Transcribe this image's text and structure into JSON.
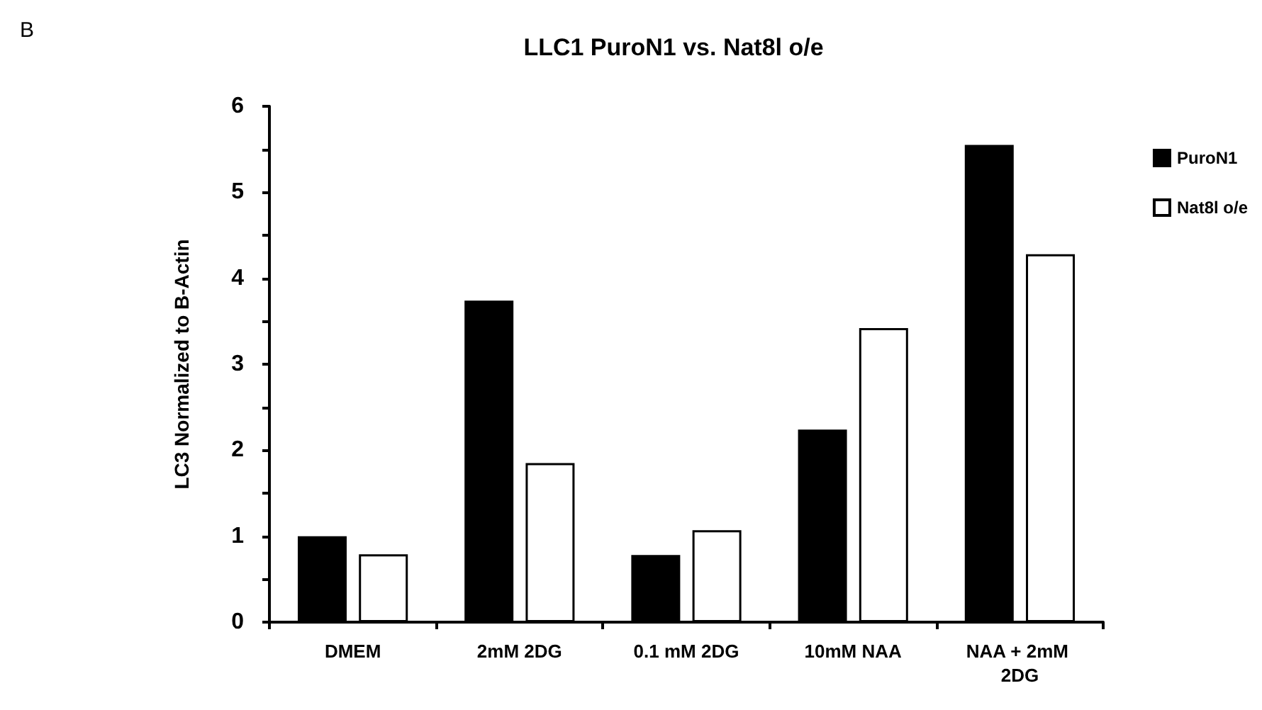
{
  "chart_data": {
    "type": "bar",
    "title": "LLC1 PuroN1 vs. Nat8l o/e",
    "ylabel": "LC3 Normalized to B-Actin",
    "annotations": [
      "B"
    ],
    "categories": [
      "DMEM",
      "2mM 2DG",
      "0.1 mM 2DG",
      "10mM NAA",
      "NAA + 2mM 2DG"
    ],
    "series": [
      {
        "name": "PuroN1",
        "color": "#000000",
        "values": [
          1.0,
          3.74,
          0.78,
          2.24,
          5.55
        ]
      },
      {
        "name": "Nat8l o/e",
        "color": "#ffffff",
        "values": [
          0.79,
          1.85,
          1.07,
          3.42,
          4.28
        ]
      }
    ],
    "ylim": [
      0,
      6
    ],
    "yticks": [
      0,
      {
        "value": 0.5,
        "label": null
      },
      1,
      {
        "value": 1.5,
        "label": null
      },
      2,
      {
        "value": 2.5,
        "label": null
      },
      3,
      {
        "value": 3.5,
        "label": null
      },
      4,
      {
        "value": 4.5,
        "label": null
      },
      5,
      {
        "value": 5.5,
        "label": null
      },
      6
    ],
    "grid": false,
    "legend": "top right"
  }
}
